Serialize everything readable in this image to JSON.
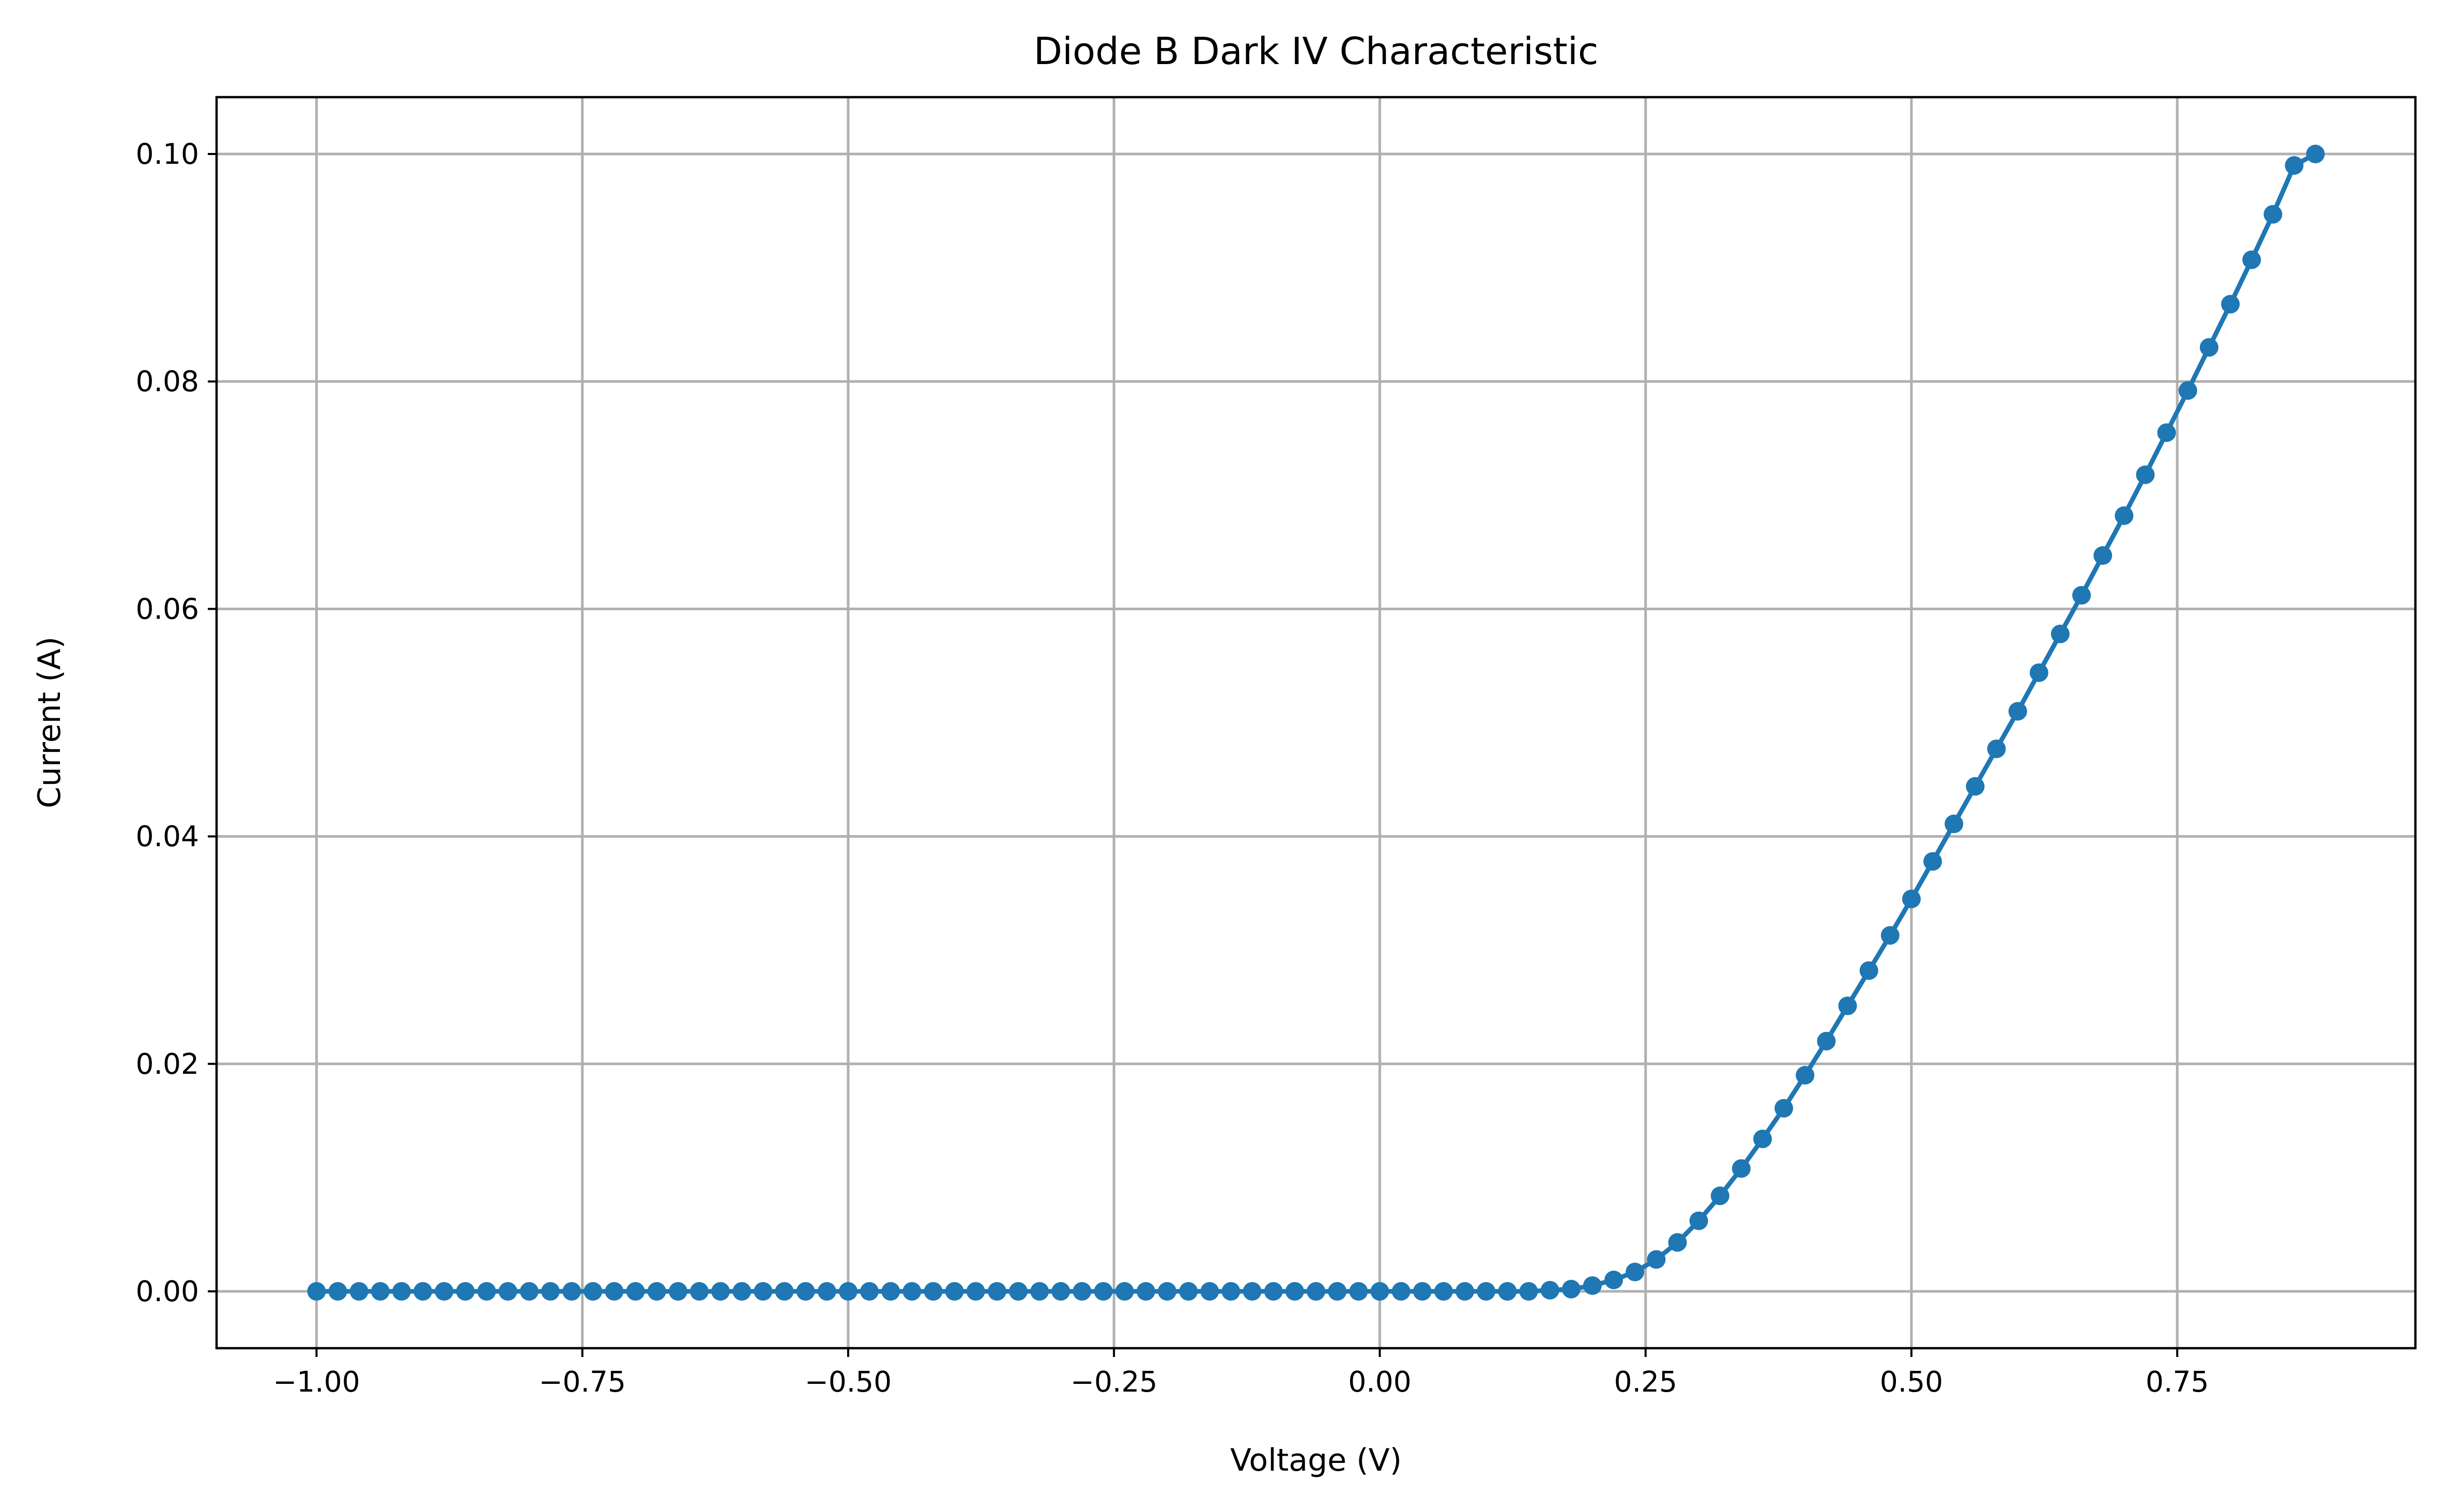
{
  "chart_data": {
    "type": "line",
    "title": "Diode B Dark IV Characteristic",
    "xlabel": "Voltage (V)",
    "ylabel": "Current (A)",
    "xlim": [
      -1.094,
      0.974
    ],
    "ylim": [
      -0.005,
      0.105
    ],
    "xticks": [
      -1.0,
      -0.75,
      -0.5,
      -0.25,
      0.0,
      0.25,
      0.5,
      0.75
    ],
    "xtick_labels": [
      "−1.00",
      "−0.75",
      "−0.50",
      "−0.25",
      "0.00",
      "0.25",
      "0.50",
      "0.75"
    ],
    "yticks": [
      0.0,
      0.02,
      0.04,
      0.06,
      0.08,
      0.1
    ],
    "ytick_labels": [
      "0.00",
      "0.02",
      "0.04",
      "0.06",
      "0.08",
      "0.10"
    ],
    "grid": true,
    "legend": false,
    "series": [
      {
        "color": "#1f77b4",
        "marker": "circle",
        "x": [
          -1.0,
          -0.98,
          -0.96,
          -0.94,
          -0.92,
          -0.9,
          -0.88,
          -0.86,
          -0.84,
          -0.82,
          -0.8,
          -0.78,
          -0.76,
          -0.74,
          -0.72,
          -0.7,
          -0.68,
          -0.66,
          -0.64,
          -0.62,
          -0.6,
          -0.58,
          -0.56,
          -0.54,
          -0.52,
          -0.5,
          -0.48,
          -0.46,
          -0.44,
          -0.42,
          -0.4,
          -0.38,
          -0.36,
          -0.34,
          -0.32,
          -0.3,
          -0.28,
          -0.26,
          -0.24,
          -0.22,
          -0.2,
          -0.18,
          -0.16,
          -0.14,
          -0.12,
          -0.1,
          -0.08,
          -0.06,
          -0.04,
          -0.02,
          0.0,
          0.02,
          0.04,
          0.06,
          0.08,
          0.1,
          0.12,
          0.14,
          0.16,
          0.18,
          0.2,
          0.22,
          0.24,
          0.26,
          0.28,
          0.3,
          0.32,
          0.34,
          0.36,
          0.38,
          0.4,
          0.42,
          0.44,
          0.46,
          0.48,
          0.5,
          0.52,
          0.54,
          0.56,
          0.58,
          0.6,
          0.62,
          0.64,
          0.66,
          0.68,
          0.7,
          0.72,
          0.74,
          0.76,
          0.78,
          0.8,
          0.82,
          0.84,
          0.86,
          0.88
        ],
        "y": [
          0,
          0,
          0,
          0,
          0,
          0,
          0,
          0,
          0,
          0,
          0,
          0,
          0,
          0,
          0,
          0,
          0,
          0,
          0,
          0,
          0,
          0,
          0,
          0,
          0,
          0,
          0,
          0,
          0,
          0,
          0,
          0,
          0,
          0,
          0,
          0,
          0,
          0,
          0,
          0,
          0,
          0,
          0,
          0,
          0,
          0,
          0,
          0,
          0,
          0,
          0,
          0,
          0,
          0,
          0,
          0,
          0,
          0,
          0.0001,
          0.0002,
          0.0005,
          0.001,
          0.0017,
          0.0028,
          0.0043,
          0.0062,
          0.0084,
          0.0108,
          0.0134,
          0.0161,
          0.019,
          0.022,
          0.0251,
          0.0282,
          0.0313,
          0.0345,
          0.0378,
          0.0411,
          0.0444,
          0.0477,
          0.051,
          0.0544,
          0.0578,
          0.0612,
          0.0647,
          0.0682,
          0.0718,
          0.0755,
          0.0792,
          0.083,
          0.0868,
          0.0907,
          0.0947,
          0.099,
          0.1
        ]
      }
    ]
  }
}
